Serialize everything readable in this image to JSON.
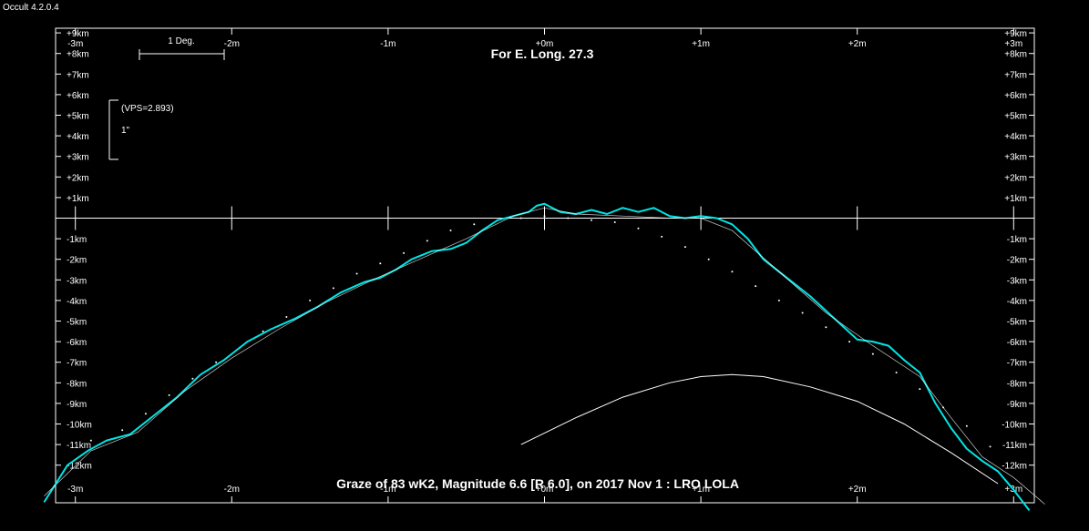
{
  "window_title": "Occult 4.2.0.4",
  "chart_data": {
    "type": "line",
    "title": "For E. Long. 27.3",
    "caption": "Graze of  83 wK2,  Magnitude 6.6 [R 6.0],  on 2017 Nov  1  :  LRO LOLA",
    "scale_bar_label": "1 Deg.",
    "vps_label": "(VPS=2.893)",
    "vps_bar_label": "1\"",
    "x_unit": "minutes",
    "y_unit": "km",
    "xlim": [
      -3,
      3
    ],
    "ylim": [
      -13.5,
      9.2
    ],
    "x_ticks": [
      -3,
      -2,
      -1,
      0,
      1,
      2,
      3
    ],
    "x_tick_labels_top": [
      "-3m",
      "-2m",
      "-1m",
      "+0m",
      "+1m",
      "+2m",
      "+3m"
    ],
    "x_tick_labels_bottom": [
      "-3m",
      "-2m",
      "-1m",
      "+0m",
      "+1m",
      "+2m",
      "+3m"
    ],
    "y_ticks": [
      9,
      8,
      7,
      6,
      5,
      4,
      3,
      2,
      1,
      -1,
      -2,
      -3,
      -4,
      -5,
      -6,
      -7,
      -8,
      -9,
      -10,
      -11,
      -12
    ],
    "y_tick_labels": [
      "+9km",
      "+8km",
      "+7km",
      "+6km",
      "+5km",
      "+4km",
      "+3km",
      "+2km",
      "+1km",
      "-1km",
      "-2km",
      "-3km",
      "-4km",
      "-5km",
      "-6km",
      "-7km",
      "-8km",
      "-9km",
      "-10km",
      "-11km",
      "-12km"
    ],
    "colors": {
      "background": "#000000",
      "axes": "#ffffff",
      "profile": "#00e5e5",
      "smooth": "#ffffff",
      "limit_dots": "#ffffff"
    },
    "series": [
      {
        "kind": "lunar-limb-profile",
        "x": [
          -3.2,
          -3.05,
          -2.92,
          -2.8,
          -2.65,
          -2.5,
          -2.35,
          -2.2,
          -2.05,
          -1.9,
          -1.75,
          -1.6,
          -1.45,
          -1.3,
          -1.15,
          -1.05,
          -0.95,
          -0.85,
          -0.72,
          -0.6,
          -0.5,
          -0.4,
          -0.3,
          -0.2,
          -0.1,
          -0.05,
          0.0,
          0.1,
          0.2,
          0.3,
          0.4,
          0.5,
          0.6,
          0.7,
          0.8,
          0.9,
          1.0,
          1.1,
          1.2,
          1.3,
          1.4,
          1.5,
          1.6,
          1.7,
          1.8,
          1.9,
          2.0,
          2.1,
          2.2,
          2.3,
          2.4,
          2.5,
          2.6,
          2.7,
          2.8,
          2.9,
          3.0,
          3.1
        ],
        "y": [
          -13.8,
          -12.0,
          -11.3,
          -10.8,
          -10.5,
          -9.6,
          -8.7,
          -7.6,
          -6.9,
          -6.0,
          -5.4,
          -4.9,
          -4.3,
          -3.6,
          -3.1,
          -2.9,
          -2.5,
          -2.0,
          -1.6,
          -1.5,
          -1.2,
          -0.6,
          -0.1,
          0.1,
          0.3,
          0.6,
          0.7,
          0.3,
          0.2,
          0.4,
          0.2,
          0.5,
          0.3,
          0.5,
          0.1,
          0.0,
          0.1,
          0.0,
          -0.3,
          -1.0,
          -2.0,
          -2.6,
          -3.2,
          -3.8,
          -4.5,
          -5.2,
          -5.9,
          -6.0,
          -6.2,
          -6.9,
          -7.5,
          -9.0,
          -10.2,
          -11.2,
          -11.8,
          -12.3,
          -13.2,
          -14.2
        ]
      },
      {
        "kind": "limit-dots",
        "x": [
          -2.9,
          -2.7,
          -2.55,
          -2.4,
          -2.25,
          -2.1,
          -1.95,
          -1.8,
          -1.65,
          -1.5,
          -1.35,
          -1.2,
          -1.05,
          -0.9,
          -0.75,
          -0.6,
          -0.45,
          -0.3,
          -0.15,
          0.0,
          0.15,
          0.3,
          0.45,
          0.6,
          0.75,
          0.9,
          1.05,
          1.2,
          1.35,
          1.5,
          1.65,
          1.8,
          1.95,
          2.1,
          2.25,
          2.4,
          2.55,
          2.7,
          2.85
        ],
        "y": [
          -10.8,
          -10.3,
          -9.5,
          -8.6,
          -7.8,
          -7.0,
          -6.3,
          -5.5,
          -4.8,
          -4.0,
          -3.4,
          -2.7,
          -2.2,
          -1.7,
          -1.1,
          -0.6,
          -0.3,
          -0.1,
          0.0,
          0.1,
          0.0,
          -0.1,
          -0.2,
          -0.5,
          -0.9,
          -1.4,
          -2.0,
          -2.6,
          -3.3,
          -4.0,
          -4.6,
          -5.3,
          -6.0,
          -6.6,
          -7.5,
          -8.3,
          -9.2,
          -10.1,
          -11.1
        ]
      },
      {
        "kind": "smoothed-profile",
        "x": [
          -3.2,
          -2.9,
          -2.6,
          -2.3,
          -2.0,
          -1.7,
          -1.4,
          -1.1,
          -0.8,
          -0.5,
          -0.2,
          0.0,
          0.2,
          0.5,
          0.8,
          1.0,
          1.2,
          1.5,
          1.8,
          2.1,
          2.4,
          2.6,
          2.8,
          3.0,
          3.2
        ],
        "y": [
          -13.5,
          -11.3,
          -10.4,
          -8.4,
          -6.8,
          -5.4,
          -4.1,
          -3.0,
          -2.0,
          -1.0,
          0.1,
          0.5,
          0.2,
          0.1,
          0.0,
          0.0,
          -0.6,
          -2.6,
          -4.6,
          -6.2,
          -7.7,
          -9.7,
          -11.6,
          -12.6,
          -13.9
        ]
      },
      {
        "kind": "limb-arc",
        "x": [
          -0.15,
          0.2,
          0.5,
          0.8,
          1.0,
          1.2,
          1.4,
          1.7,
          2.0,
          2.3,
          2.6,
          2.9
        ],
        "y": [
          -11.0,
          -9.7,
          -8.7,
          -8.0,
          -7.7,
          -7.6,
          -7.7,
          -8.2,
          -8.9,
          -10.0,
          -11.4,
          -12.9
        ]
      }
    ]
  }
}
